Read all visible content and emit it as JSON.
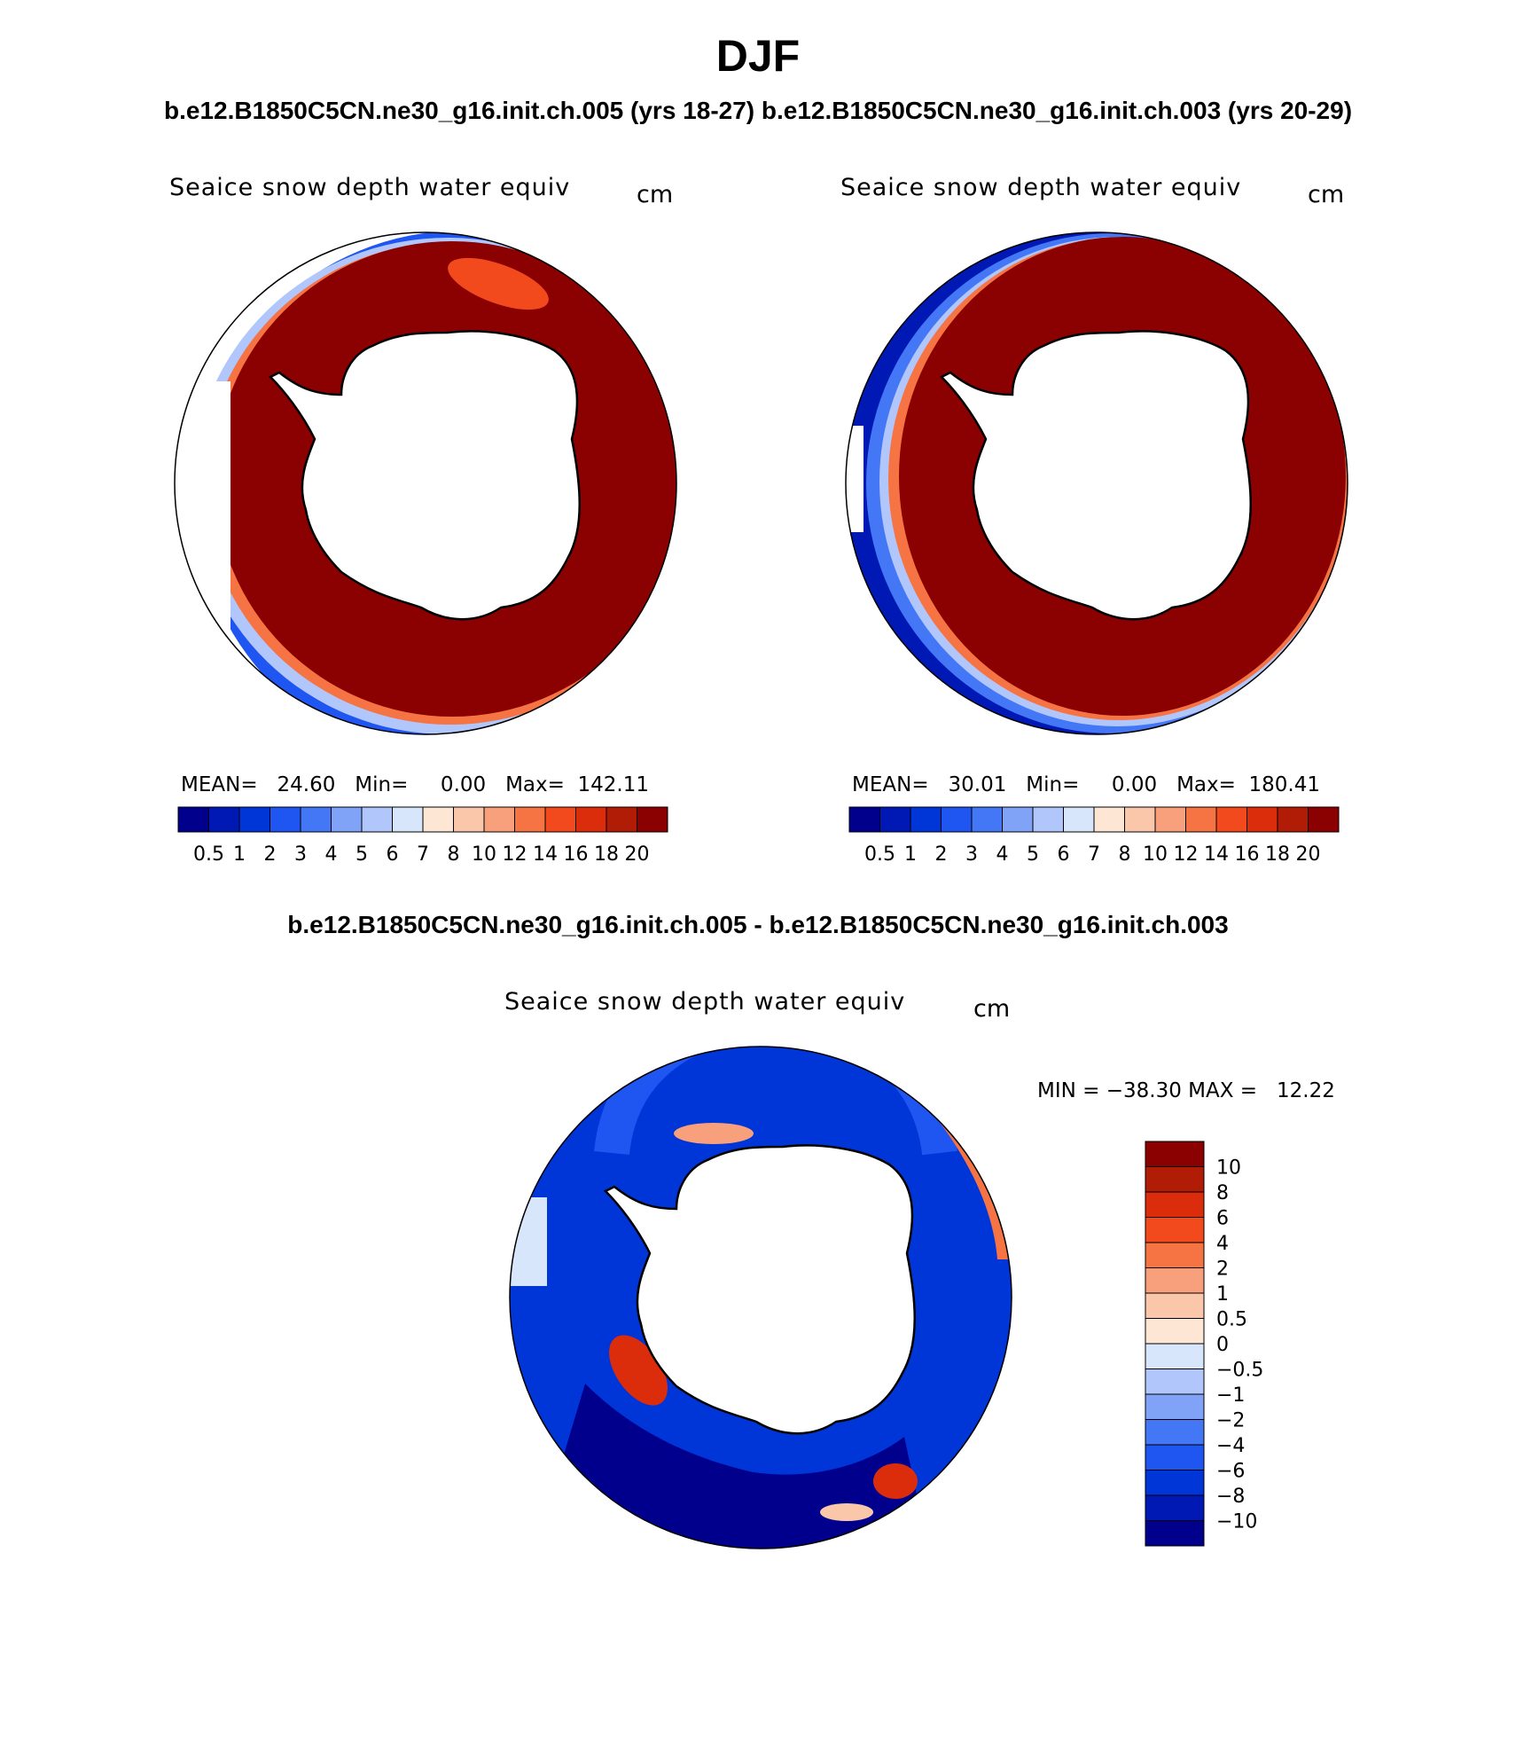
{
  "title": "DJF",
  "case1_label": "b.e12.B1850C5CN.ne30_g16.init.ch.005 (yrs 18-27)",
  "case2_label": "b.e12.B1850C5CN.ne30_g16.init.ch.003 (yrs 20-29)",
  "diff_label": "b.e12.B1850C5CN.ne30_g16.init.ch.005 - b.e12.B1850C5CN.ne30_g16.init.ch.003",
  "panels": {
    "left": {
      "variable": "Seaice snow depth water equiv",
      "units": "cm",
      "stats_text": "MEAN=   24.60   Min=     0.00   Max=  142.11"
    },
    "right": {
      "variable": "Seaice snow depth water equiv",
      "units": "cm",
      "stats_text": "MEAN=   30.01   Min=     0.00   Max=  180.41"
    },
    "diff": {
      "variable": "Seaice snow depth water equiv",
      "units": "cm",
      "minmax_text": "MIN = −38.30 MAX =   12.22"
    }
  },
  "colorbar_abs": {
    "colors": [
      "#00008c",
      "#0019b4",
      "#0035d7",
      "#1f55f0",
      "#4377f5",
      "#80a2f7",
      "#b1c6fa",
      "#d8e6fb",
      "#fde6d3",
      "#fbc7ab",
      "#f8a07c",
      "#f67344",
      "#f24a1c",
      "#db2d0c",
      "#b01c06",
      "#8b0000"
    ],
    "labels": [
      "0.5",
      "1",
      "2",
      "3",
      "4",
      "5",
      "6",
      "7",
      "8",
      "10",
      "12",
      "14",
      "16",
      "18",
      "20"
    ]
  },
  "colorbar_diff": {
    "colors": [
      "#8b0000",
      "#b01c06",
      "#db2d0c",
      "#f24a1c",
      "#f67344",
      "#f8a07c",
      "#fbc7ab",
      "#fde6d3",
      "#d8e6fb",
      "#b1c6fa",
      "#80a2f7",
      "#4377f5",
      "#1f55f0",
      "#0035d7",
      "#0019b4",
      "#00008c"
    ],
    "labels": [
      "10",
      "8",
      "6",
      "4",
      "2",
      "1",
      "0.5",
      "0",
      "−0.5",
      "−1",
      "−2",
      "−4",
      "−6",
      "−8",
      "−10"
    ]
  },
  "colors": {
    "ocean": "#ffffff",
    "ice_thick": "#8b0000",
    "land": "#ffffff",
    "coast": "#000000"
  }
}
